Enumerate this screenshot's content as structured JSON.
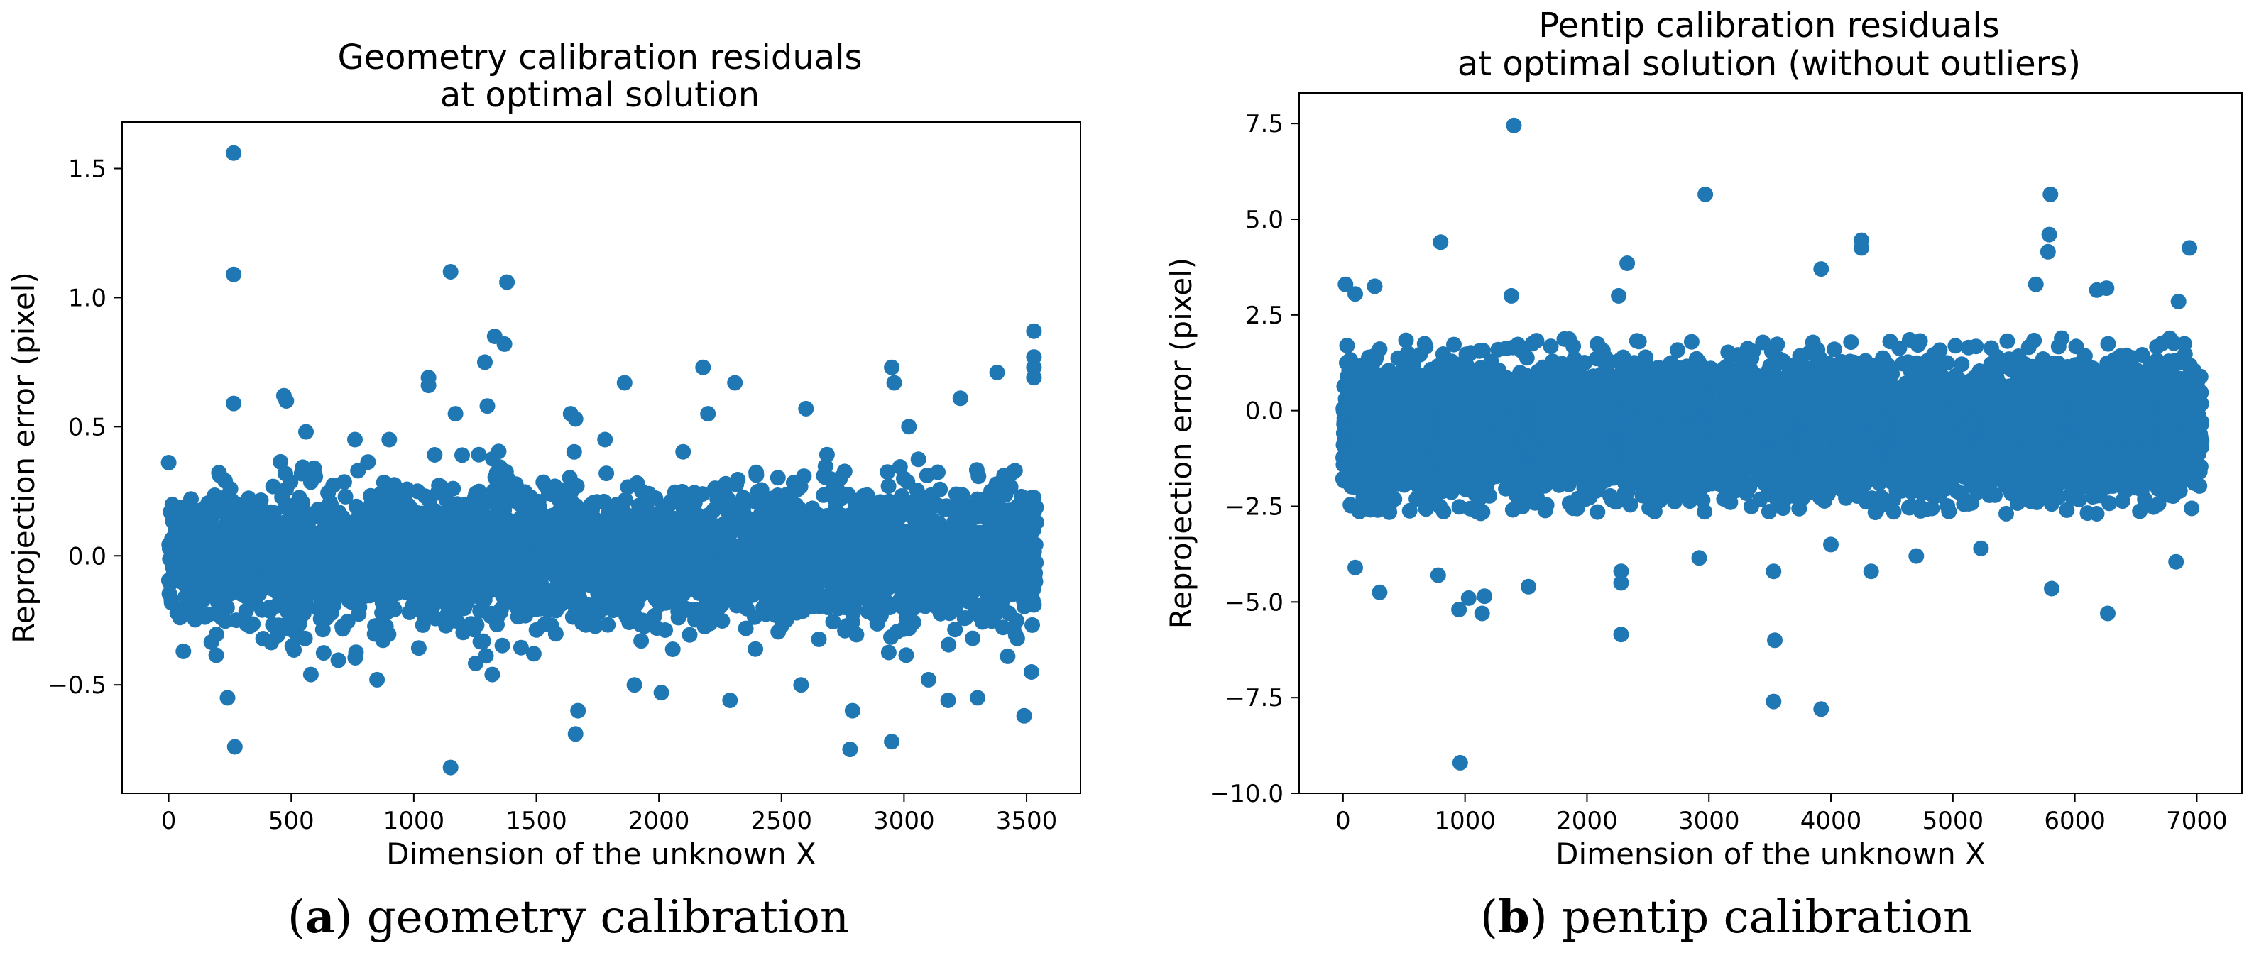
{
  "chart_data": [
    {
      "type": "scatter",
      "title_lines": [
        "Geometry calibration residuals",
        "at optimal solution"
      ],
      "xlabel": "Dimension of the unknown X",
      "ylabel": "Reprojection error (pixel)",
      "xlim": [
        -190,
        3720
      ],
      "ylim": [
        -0.92,
        1.68
      ],
      "xticks": [
        0,
        500,
        1000,
        1500,
        2000,
        2500,
        3000,
        3500
      ],
      "xtick_labels": [
        "0",
        "500",
        "1000",
        "1500",
        "2000",
        "2500",
        "3000",
        "3500"
      ],
      "yticks": [
        -0.5,
        0.0,
        0.5,
        1.0,
        1.5
      ],
      "ytick_labels": [
        "−0.5",
        "0.0",
        "0.5",
        "1.0",
        "1.5"
      ],
      "color": "#1f77b4",
      "bulk": {
        "x_min": 0,
        "x_max": 3540,
        "count": 3540,
        "center": 0.0,
        "spread": 0.13,
        "clip_low": -0.42,
        "clip_high": 0.42
      },
      "outliers": [
        {
          "x": 265,
          "y": 1.56
        },
        {
          "x": 265,
          "y": 1.09
        },
        {
          "x": 265,
          "y": 0.59
        },
        {
          "x": 270,
          "y": -0.74
        },
        {
          "x": 240,
          "y": -0.55
        },
        {
          "x": 470,
          "y": 0.62
        },
        {
          "x": 480,
          "y": 0.6
        },
        {
          "x": 560,
          "y": 0.48
        },
        {
          "x": 1150,
          "y": 1.1
        },
        {
          "x": 1150,
          "y": -0.82
        },
        {
          "x": 1380,
          "y": 1.06
        },
        {
          "x": 1330,
          "y": 0.85
        },
        {
          "x": 1370,
          "y": 0.82
        },
        {
          "x": 1290,
          "y": 0.75
        },
        {
          "x": 1300,
          "y": 0.58
        },
        {
          "x": 1060,
          "y": 0.69
        },
        {
          "x": 1060,
          "y": 0.66
        },
        {
          "x": 1170,
          "y": 0.55
        },
        {
          "x": 1660,
          "y": -0.69
        },
        {
          "x": 1670,
          "y": -0.6
        },
        {
          "x": 1660,
          "y": 0.53
        },
        {
          "x": 1640,
          "y": 0.55
        },
        {
          "x": 1860,
          "y": 0.67
        },
        {
          "x": 2180,
          "y": 0.73
        },
        {
          "x": 2310,
          "y": 0.67
        },
        {
          "x": 2780,
          "y": -0.75
        },
        {
          "x": 2790,
          "y": -0.6
        },
        {
          "x": 2950,
          "y": -0.72
        },
        {
          "x": 2950,
          "y": 0.73
        },
        {
          "x": 2960,
          "y": 0.67
        },
        {
          "x": 3230,
          "y": 0.61
        },
        {
          "x": 3380,
          "y": 0.71
        },
        {
          "x": 3530,
          "y": 0.87
        },
        {
          "x": 3530,
          "y": 0.77
        },
        {
          "x": 3530,
          "y": 0.73
        },
        {
          "x": 3530,
          "y": 0.69
        },
        {
          "x": 3490,
          "y": -0.62
        },
        {
          "x": 3180,
          "y": -0.56
        },
        {
          "x": 2290,
          "y": -0.56
        },
        {
          "x": 60,
          "y": -0.37
        },
        {
          "x": 580,
          "y": -0.46
        },
        {
          "x": 1320,
          "y": -0.46
        },
        {
          "x": 2010,
          "y": -0.53
        },
        {
          "x": 2580,
          "y": -0.5
        },
        {
          "x": 3300,
          "y": -0.55
        },
        {
          "x": 3520,
          "y": -0.45
        },
        {
          "x": 850,
          "y": -0.48
        },
        {
          "x": 3020,
          "y": 0.5
        },
        {
          "x": 2600,
          "y": 0.57
        },
        {
          "x": 2200,
          "y": 0.55
        },
        {
          "x": 1780,
          "y": 0.45
        },
        {
          "x": 900,
          "y": 0.45
        },
        {
          "x": 3100,
          "y": -0.48
        },
        {
          "x": 1900,
          "y": -0.5
        },
        {
          "x": 760,
          "y": 0.45
        }
      ]
    },
    {
      "type": "scatter",
      "title_lines": [
        "Pentip calibration residuals",
        "at optimal solution (without outliers)"
      ],
      "xlabel": "Dimension of the unknown X",
      "ylabel": "Reprojection error (pixel)",
      "xlim": [
        -360,
        7370
      ],
      "ylim": [
        -10.0,
        8.3
      ],
      "xticks": [
        0,
        1000,
        2000,
        3000,
        4000,
        5000,
        6000,
        7000
      ],
      "xtick_labels": [
        "0",
        "1000",
        "2000",
        "3000",
        "4000",
        "5000",
        "6000",
        "7000"
      ],
      "yticks": [
        -10.0,
        -7.5,
        -5.0,
        -2.5,
        0.0,
        2.5,
        5.0,
        7.5
      ],
      "ytick_labels": [
        "−10.0",
        "−7.5",
        "−5.0",
        "−2.5",
        "0.0",
        "2.5",
        "5.0",
        "7.5"
      ],
      "color": "#1f77b4",
      "bulk": {
        "x_min": 0,
        "x_max": 7040,
        "count": 7040,
        "center": -0.5,
        "spread": 0.85,
        "clip_low": -2.7,
        "clip_high": 1.9
      },
      "outliers": [
        {
          "x": 1400,
          "y": 7.45
        },
        {
          "x": 2970,
          "y": 5.65
        },
        {
          "x": 5800,
          "y": 5.65
        },
        {
          "x": 5790,
          "y": 4.6
        },
        {
          "x": 5780,
          "y": 4.15
        },
        {
          "x": 4250,
          "y": 4.45
        },
        {
          "x": 4250,
          "y": 4.25
        },
        {
          "x": 800,
          "y": 4.4
        },
        {
          "x": 3920,
          "y": 3.7
        },
        {
          "x": 6940,
          "y": 4.25
        },
        {
          "x": 2330,
          "y": 3.85
        },
        {
          "x": 20,
          "y": 3.3
        },
        {
          "x": 260,
          "y": 3.25
        },
        {
          "x": 100,
          "y": 3.05
        },
        {
          "x": 1380,
          "y": 3.0
        },
        {
          "x": 2260,
          "y": 3.0
        },
        {
          "x": 6260,
          "y": 3.2
        },
        {
          "x": 6180,
          "y": 3.15
        },
        {
          "x": 6850,
          "y": 2.85
        },
        {
          "x": 5680,
          "y": 3.3
        },
        {
          "x": 960,
          "y": -9.2
        },
        {
          "x": 3530,
          "y": -7.6
        },
        {
          "x": 3920,
          "y": -7.8
        },
        {
          "x": 3540,
          "y": -6.0
        },
        {
          "x": 2280,
          "y": -5.85
        },
        {
          "x": 6270,
          "y": -5.3
        },
        {
          "x": 1030,
          "y": -4.9
        },
        {
          "x": 1140,
          "y": -5.3
        },
        {
          "x": 950,
          "y": -5.2
        },
        {
          "x": 1160,
          "y": -4.85
        },
        {
          "x": 300,
          "y": -4.75
        },
        {
          "x": 100,
          "y": -4.1
        },
        {
          "x": 1520,
          "y": -4.6
        },
        {
          "x": 2280,
          "y": -4.5
        },
        {
          "x": 3530,
          "y": -4.2
        },
        {
          "x": 5810,
          "y": -4.65
        },
        {
          "x": 6830,
          "y": -3.95
        },
        {
          "x": 4330,
          "y": -4.2
        },
        {
          "x": 780,
          "y": -4.3
        },
        {
          "x": 2280,
          "y": -4.2
        },
        {
          "x": 2920,
          "y": -3.85
        },
        {
          "x": 5230,
          "y": -3.6
        },
        {
          "x": 4700,
          "y": -3.8
        },
        {
          "x": 4000,
          "y": -3.5
        }
      ]
    }
  ],
  "captions": [
    {
      "letter": "a",
      "text": "geometry calibration"
    },
    {
      "letter": "b",
      "text": "pentip calibration"
    }
  ]
}
